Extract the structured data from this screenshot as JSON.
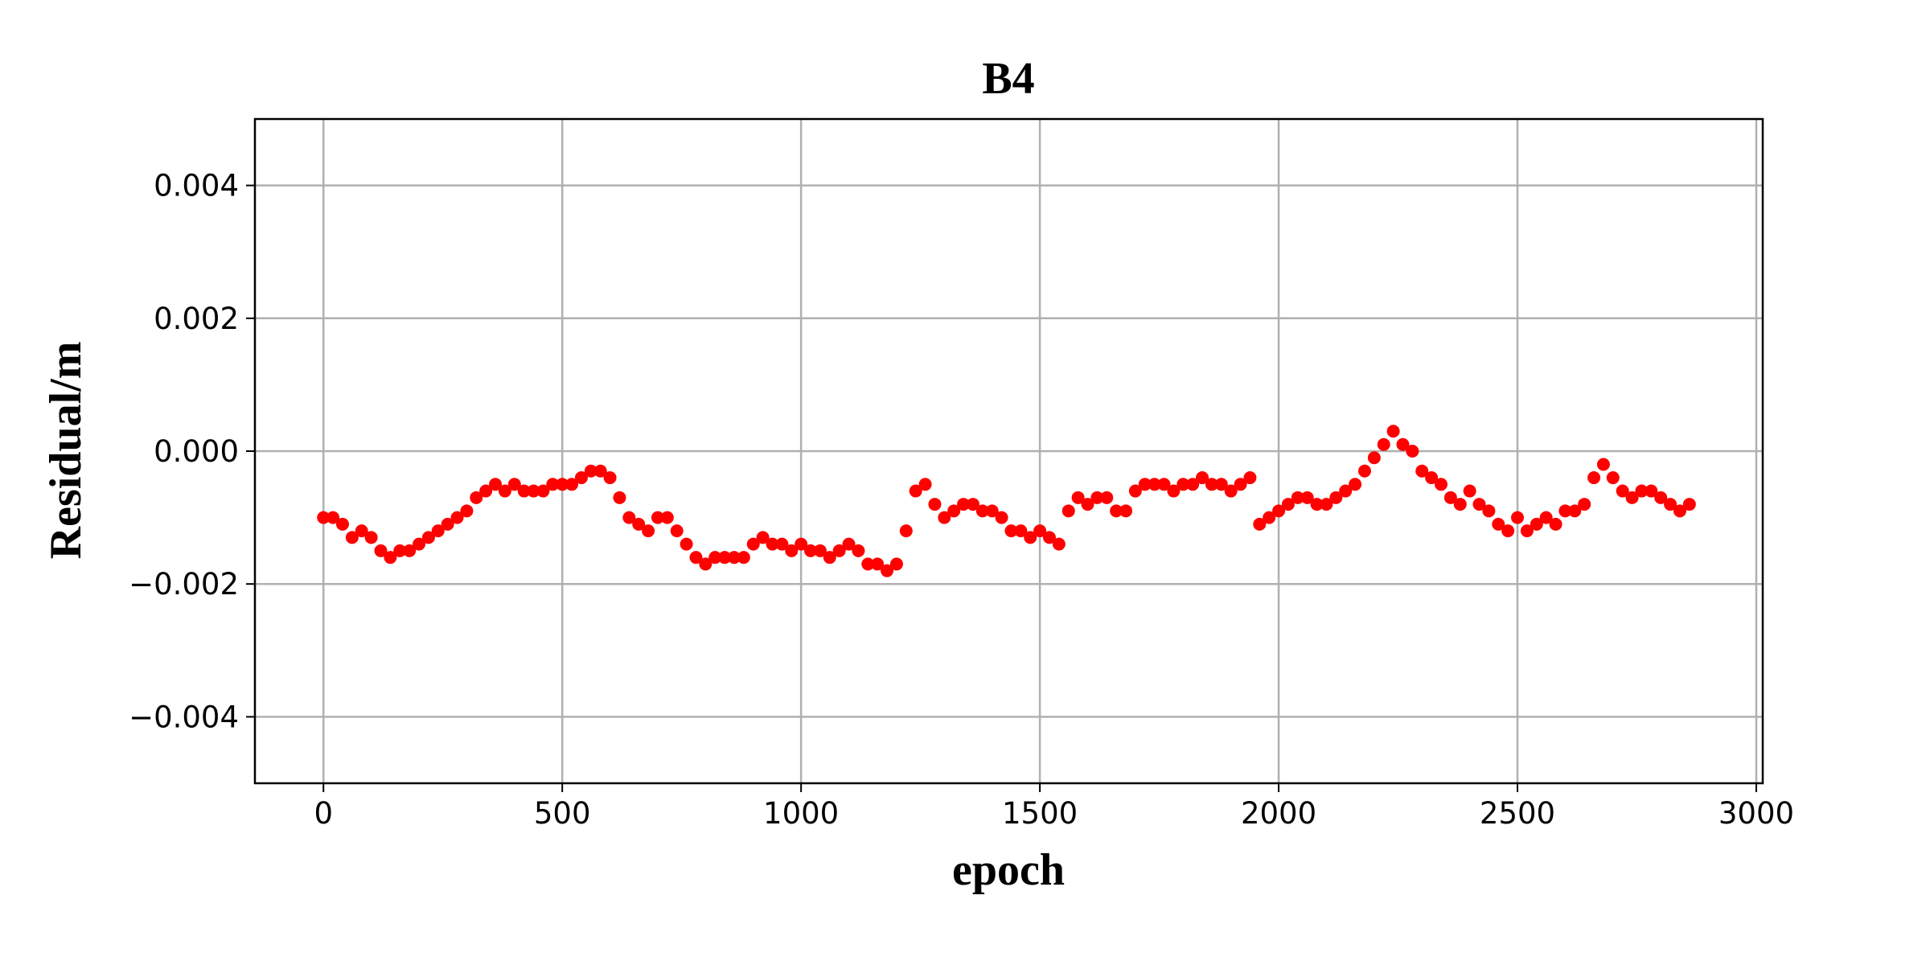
{
  "chart_data": {
    "type": "scatter",
    "title": "B4",
    "x_label": "epoch",
    "y_label": "Residual/m",
    "color": "#ff0000",
    "grid": true,
    "xlim": [
      -143.5,
      3013.5
    ],
    "ylim": [
      -0.005,
      0.005
    ],
    "xticks": [
      0,
      500,
      1000,
      1500,
      2000,
      2500,
      3000
    ],
    "yticks": [
      {
        "value": -0.004,
        "label": "−0.004"
      },
      {
        "value": -0.002,
        "label": "−0.002"
      },
      {
        "value": 0,
        "label": "0.000"
      },
      {
        "value": 0.002,
        "label": "0.002"
      },
      {
        "value": 0.004,
        "label": "0.004"
      }
    ],
    "x": [
      0,
      20,
      40,
      60,
      80,
      100,
      120,
      140,
      160,
      180,
      200,
      220,
      240,
      260,
      280,
      300,
      320,
      340,
      360,
      380,
      400,
      420,
      440,
      460,
      480,
      500,
      520,
      540,
      560,
      580,
      600,
      620,
      640,
      660,
      680,
      700,
      720,
      740,
      760,
      780,
      800,
      820,
      840,
      860,
      880,
      900,
      920,
      940,
      960,
      980,
      1000,
      1020,
      1040,
      1060,
      1080,
      1100,
      1120,
      1140,
      1160,
      1180,
      1200,
      1220,
      1240,
      1260,
      1280,
      1300,
      1320,
      1340,
      1360,
      1380,
      1400,
      1420,
      1440,
      1460,
      1480,
      1500,
      1520,
      1540,
      1560,
      1580,
      1600,
      1620,
      1640,
      1660,
      1680,
      1700,
      1720,
      1740,
      1760,
      1780,
      1800,
      1820,
      1840,
      1860,
      1880,
      1900,
      1920,
      1940,
      1960,
      1980,
      2000,
      2020,
      2040,
      2060,
      2080,
      2100,
      2120,
      2140,
      2160,
      2180,
      2200,
      2220,
      2240,
      2260,
      2280,
      2300,
      2320,
      2340,
      2360,
      2380,
      2400,
      2420,
      2440,
      2460,
      2480,
      2500,
      2520,
      2540,
      2560,
      2580,
      2600,
      2620,
      2640,
      2660,
      2680,
      2700,
      2720,
      2740,
      2760,
      2780,
      2800,
      2820,
      2840,
      2860
    ],
    "values": [
      -0.001,
      -0.001,
      -0.0011,
      -0.0013,
      -0.0012,
      -0.0013,
      -0.0015,
      -0.0016,
      -0.0015,
      -0.0015,
      -0.0014,
      -0.0013,
      -0.0012,
      -0.0011,
      -0.001,
      -0.0009,
      -0.0007,
      -0.0006,
      -0.0005,
      -0.0006,
      -0.0005,
      -0.0006,
      -0.0006,
      -0.0006,
      -0.0005,
      -0.0005,
      -0.0005,
      -0.0004,
      -0.0003,
      -0.0003,
      -0.0004,
      -0.0007,
      -0.001,
      -0.0011,
      -0.0012,
      -0.001,
      -0.001,
      -0.0012,
      -0.0014,
      -0.0016,
      -0.0017,
      -0.0016,
      -0.0016,
      -0.0016,
      -0.0016,
      -0.0014,
      -0.0013,
      -0.0014,
      -0.0014,
      -0.0015,
      -0.0014,
      -0.0015,
      -0.0015,
      -0.0016,
      -0.0015,
      -0.0014,
      -0.0015,
      -0.0017,
      -0.0017,
      -0.0018,
      -0.0017,
      -0.0012,
      -0.0006,
      -0.0005,
      -0.0008,
      -0.001,
      -0.0009,
      -0.0008,
      -0.0008,
      -0.0009,
      -0.0009,
      -0.001,
      -0.0012,
      -0.0012,
      -0.0013,
      -0.0012,
      -0.0013,
      -0.0014,
      -0.0009,
      -0.0007,
      -0.0008,
      -0.0007,
      -0.0007,
      -0.0009,
      -0.0009,
      -0.0006,
      -0.0005,
      -0.0005,
      -0.0005,
      -0.0006,
      -0.0005,
      -0.0005,
      -0.0004,
      -0.0005,
      -0.0005,
      -0.0006,
      -0.0005,
      -0.0004,
      -0.0011,
      -0.001,
      -0.0009,
      -0.0008,
      -0.0007,
      -0.0007,
      -0.0008,
      -0.0008,
      -0.0007,
      -0.0006,
      -0.0005,
      -0.0003,
      -0.0001,
      0.0001,
      0.0003,
      0.0001,
      0,
      -0.0003,
      -0.0004,
      -0.0005,
      -0.0007,
      -0.0008,
      -0.0006,
      -0.0008,
      -0.0009,
      -0.0011,
      -0.0012,
      -0.001,
      -0.0012,
      -0.0011,
      -0.001,
      -0.0011,
      -0.0009,
      -0.0009,
      -0.0008,
      -0.0004,
      -0.0002,
      -0.0004,
      -0.0006,
      -0.0007,
      -0.0006,
      -0.0006,
      -0.0007,
      -0.0008,
      -0.0009,
      -0.0008
    ]
  }
}
